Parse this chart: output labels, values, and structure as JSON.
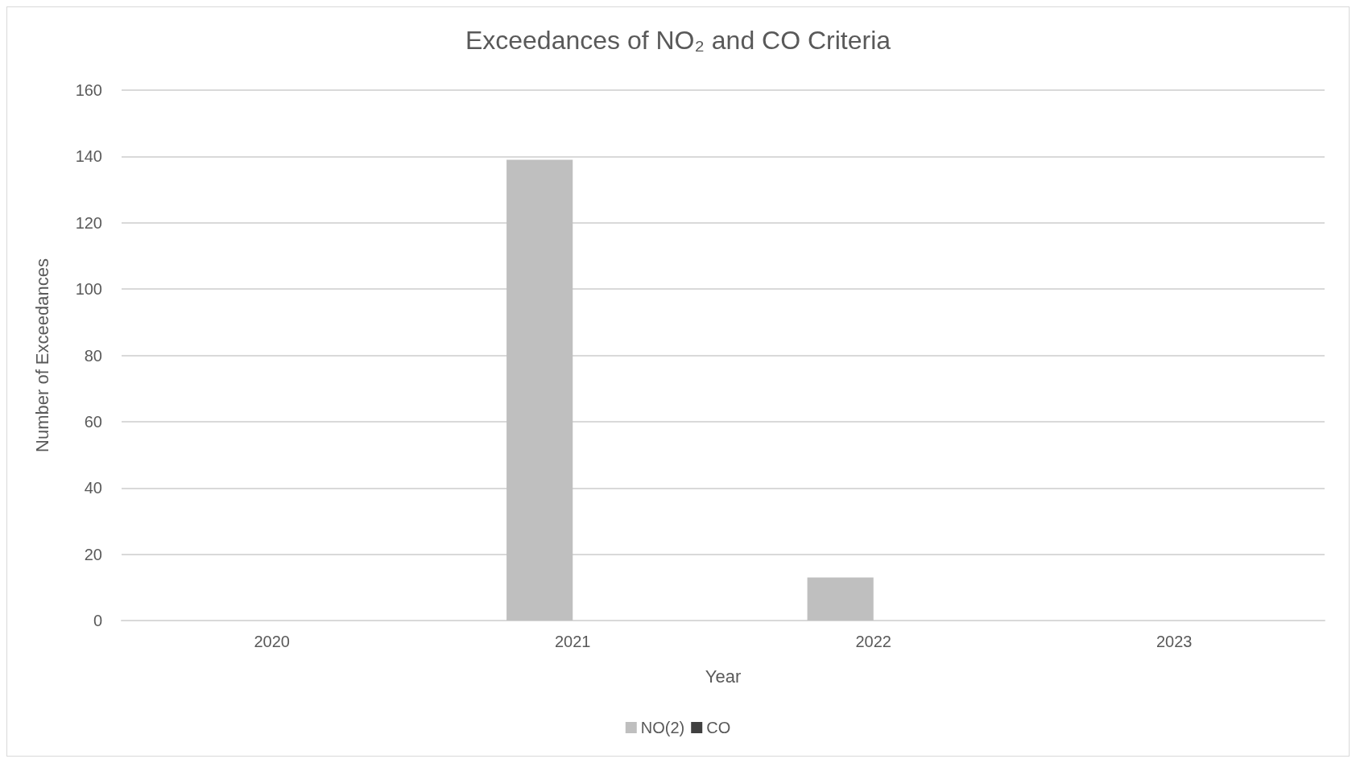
{
  "chart_data": {
    "type": "bar",
    "title": "Exceedances of NO₂ and CO Criteria",
    "xlabel": "Year",
    "ylabel": "Number of Exceedances",
    "categories": [
      "2020",
      "2021",
      "2022",
      "2023"
    ],
    "series": [
      {
        "name": "NO(2)",
        "color": "#bfbfbf",
        "values": [
          0,
          139,
          13,
          0
        ]
      },
      {
        "name": "CO",
        "color": "#404040",
        "values": [
          0,
          0,
          0,
          0
        ]
      }
    ],
    "ylim": [
      0,
      160
    ],
    "yticks": [
      0,
      20,
      40,
      60,
      80,
      100,
      120,
      140,
      160
    ],
    "grid": "y",
    "legend": "bottom"
  }
}
